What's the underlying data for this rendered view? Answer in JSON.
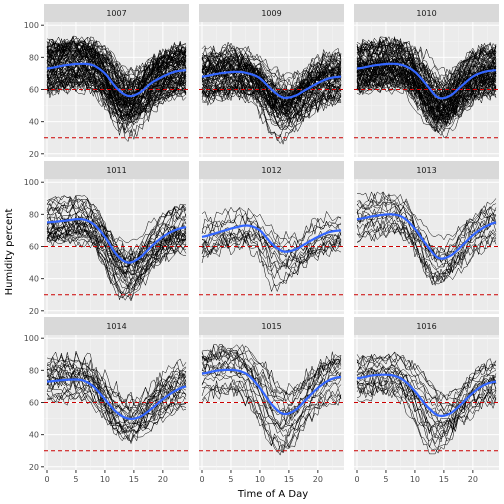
{
  "chart_data": {
    "type": "line",
    "layout": "facet-grid 3x3",
    "xlabel": "Time of A Day",
    "ylabel": "Humidity percent",
    "xlim": [
      0,
      24
    ],
    "ylim": [
      18,
      102
    ],
    "x_ticks": [
      0,
      5,
      10,
      15,
      20
    ],
    "y_ticks": [
      20,
      40,
      60,
      80,
      100
    ],
    "grid": true,
    "panel_background": "#ebebeb",
    "strip_background": "#d9d9d9",
    "raw_line_color": "#000000",
    "smooth_line_color": "#3366ff",
    "reference_line_color": "#cc0000",
    "reference_lines": [
      60,
      30
    ],
    "panels": [
      {
        "label": "1007",
        "n_days": 90,
        "smooth": {
          "x": [
            0,
            3,
            6,
            8,
            10,
            12,
            14,
            16,
            18,
            20,
            22,
            24
          ],
          "y": [
            73,
            75,
            76,
            75,
            70,
            61,
            56,
            58,
            64,
            68,
            71,
            72
          ]
        },
        "low_min": 20,
        "high_max": 100
      },
      {
        "label": "1009",
        "n_days": 70,
        "smooth": {
          "x": [
            0,
            3,
            6,
            8,
            10,
            12,
            14,
            16,
            18,
            20,
            22,
            24
          ],
          "y": [
            68,
            70,
            71,
            70,
            67,
            60,
            55,
            56,
            60,
            64,
            67,
            68
          ]
        },
        "low_min": 25,
        "high_max": 96
      },
      {
        "label": "1010",
        "n_days": 85,
        "smooth": {
          "x": [
            0,
            3,
            6,
            8,
            10,
            12,
            14,
            16,
            18,
            20,
            22,
            24
          ],
          "y": [
            73,
            75,
            76,
            75,
            71,
            63,
            55,
            56,
            62,
            68,
            71,
            72
          ]
        },
        "low_min": 20,
        "high_max": 100
      },
      {
        "label": "1011",
        "n_days": 35,
        "smooth": {
          "x": [
            0,
            3,
            6,
            8,
            10,
            12,
            14,
            16,
            18,
            20,
            22,
            24
          ],
          "y": [
            75,
            76,
            77,
            74,
            66,
            55,
            50,
            53,
            60,
            66,
            70,
            72
          ]
        },
        "low_min": 22,
        "high_max": 100
      },
      {
        "label": "1012",
        "n_days": 15,
        "smooth": {
          "x": [
            0,
            3,
            6,
            8,
            10,
            12,
            14,
            16,
            18,
            20,
            22,
            24
          ],
          "y": [
            66,
            69,
            72,
            73,
            70,
            62,
            57,
            58,
            62,
            66,
            69,
            70
          ]
        },
        "low_min": 32,
        "high_max": 96
      },
      {
        "label": "1013",
        "n_days": 18,
        "smooth": {
          "x": [
            0,
            3,
            6,
            8,
            10,
            12,
            14,
            16,
            18,
            20,
            22,
            24
          ],
          "y": [
            77,
            79,
            80,
            78,
            71,
            61,
            53,
            54,
            60,
            67,
            72,
            75
          ]
        },
        "low_min": 30,
        "high_max": 94
      },
      {
        "label": "1014",
        "n_days": 25,
        "smooth": {
          "x": [
            0,
            3,
            6,
            8,
            10,
            12,
            14,
            16,
            18,
            20,
            22,
            24
          ],
          "y": [
            73,
            74,
            74,
            70,
            62,
            54,
            50,
            51,
            56,
            62,
            67,
            70
          ]
        },
        "low_min": 25,
        "high_max": 92
      },
      {
        "label": "1015",
        "n_days": 22,
        "smooth": {
          "x": [
            0,
            3,
            6,
            8,
            10,
            12,
            14,
            16,
            18,
            20,
            22,
            24
          ],
          "y": [
            78,
            80,
            80,
            77,
            69,
            59,
            53,
            55,
            62,
            69,
            74,
            76
          ]
        },
        "low_min": 27,
        "high_max": 96
      },
      {
        "label": "1016",
        "n_days": 22,
        "smooth": {
          "x": [
            0,
            3,
            6,
            8,
            10,
            12,
            14,
            16,
            18,
            20,
            22,
            24
          ],
          "y": [
            75,
            77,
            77,
            74,
            67,
            58,
            52,
            53,
            59,
            66,
            71,
            73
          ]
        },
        "low_min": 28,
        "high_max": 94
      }
    ]
  }
}
